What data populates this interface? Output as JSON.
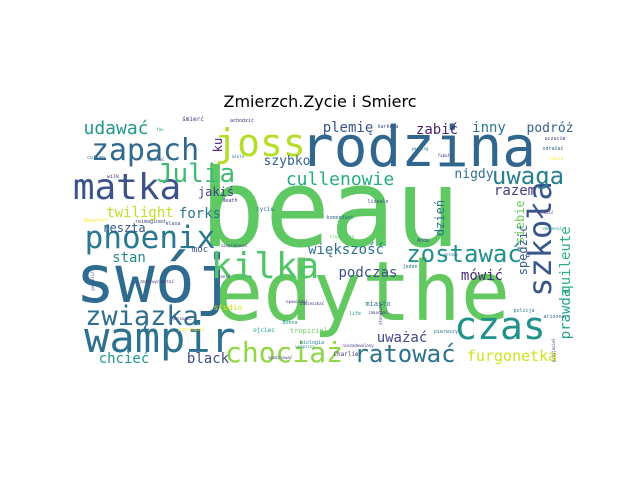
{
  "chart_data": {
    "type": "wordcloud",
    "title": "Zmierzch.Zycie i Smierc",
    "palette": "viridis",
    "words": [
      {
        "text": "beau",
        "weight": 100,
        "color": "#5ec962"
      },
      {
        "text": "edythe",
        "weight": 92,
        "color": "#63c860"
      },
      {
        "text": "swój",
        "weight": 80,
        "color": "#2f6b8e"
      },
      {
        "text": "rodzina",
        "weight": 75,
        "color": "#31668e"
      },
      {
        "text": "wampir",
        "weight": 55,
        "color": "#2c728e"
      },
      {
        "text": "matka",
        "weight": 50,
        "color": "#3b528b"
      },
      {
        "text": "czas",
        "weight": 48,
        "color": "#21918c"
      },
      {
        "text": "szkoła",
        "weight": 44,
        "color": "#39568c"
      },
      {
        "text": "kilka",
        "weight": 40,
        "color": "#52c569"
      },
      {
        "text": "joss",
        "weight": 38,
        "color": "#b5de2b"
      },
      {
        "text": "phoenix",
        "weight": 38,
        "color": "#2a788e"
      },
      {
        "text": "zapach",
        "weight": 37,
        "color": "#31688e"
      },
      {
        "text": "związka",
        "weight": 33,
        "color": "#2e6e8e"
      },
      {
        "text": "chociaż",
        "weight": 33,
        "color": "#8fd744"
      },
      {
        "text": "Julia",
        "weight": 29,
        "color": "#3fbc73"
      },
      {
        "text": "ratować",
        "weight": 28,
        "color": "#2c728e"
      },
      {
        "text": "zostawać",
        "weight": 28,
        "color": "#218f8d"
      },
      {
        "text": "uwaga",
        "weight": 27,
        "color": "#27808e"
      },
      {
        "text": "cullenowie",
        "weight": 23,
        "color": "#25ac82"
      },
      {
        "text": "udawać",
        "weight": 18,
        "color": "#1f988b"
      },
      {
        "text": "furgonetka",
        "weight": 17,
        "color": "#d2e21b"
      },
      {
        "text": "mówić",
        "weight": 16,
        "color": "#472d7b"
      },
      {
        "text": "twilight",
        "weight": 15,
        "color": "#c0df25"
      },
      {
        "text": "uważać",
        "weight": 15,
        "color": "#404688"
      },
      {
        "text": "prawda",
        "weight": 15,
        "color": "#1fa088"
      },
      {
        "text": "quileute",
        "weight": 14,
        "color": "#2db27d"
      },
      {
        "text": "podczas",
        "weight": 14,
        "color": "#3b528b"
      },
      {
        "text": "większość",
        "weight": 14,
        "color": "#2d708e"
      },
      {
        "text": "chcieć",
        "weight": 14,
        "color": "#1f958b"
      },
      {
        "text": "black",
        "weight": 14,
        "color": "#3d4d8a"
      },
      {
        "text": "forks",
        "weight": 14,
        "color": "#2a768e"
      },
      {
        "text": "stan",
        "weight": 14,
        "color": "#238a8d"
      },
      {
        "text": "razem",
        "weight": 14,
        "color": "#433e85"
      },
      {
        "text": "plemię",
        "weight": 14,
        "color": "#3b528b"
      },
      {
        "text": "zabić",
        "weight": 14,
        "color": "#481f70"
      },
      {
        "text": "inny",
        "weight": 14,
        "color": "#2c738e"
      },
      {
        "text": "podróż",
        "weight": 13,
        "color": "#355f8d"
      },
      {
        "text": "szybko",
        "weight": 13,
        "color": "#355f8d"
      },
      {
        "text": "nigdy",
        "weight": 13,
        "color": "#2d708e"
      },
      {
        "text": "reszta",
        "weight": 12,
        "color": "#3a548c"
      },
      {
        "text": "jakiś",
        "weight": 12,
        "color": "#433e85"
      },
      {
        "text": "dzień",
        "weight": 12,
        "color": "#2c728e"
      },
      {
        "text": "siebie",
        "weight": 12,
        "color": "#6ccd5a"
      },
      {
        "text": "spędzić",
        "weight": 12,
        "color": "#355f8d"
      },
      {
        "text": "ku",
        "weight": 12,
        "color": "#481a6c"
      },
      {
        "text": "móc",
        "weight": 9,
        "color": "#3e4a89"
      },
      {
        "text": "studio",
        "weight": 8,
        "color": "#d8e219"
      },
      {
        "text": "miasto",
        "weight": 7,
        "color": "#2a788e"
      },
      {
        "text": "Charlie",
        "weight": 6,
        "color": "#46337e"
      },
      {
        "text": "śmierć",
        "weight": 6,
        "color": "#46327e"
      },
      {
        "text": "ojciec",
        "weight": 6,
        "color": "#1f9e89"
      },
      {
        "text": "tropiciel",
        "weight": 6,
        "color": "#6ccd5a"
      },
      {
        "text": "zycie",
        "weight": 6,
        "color": "#2a788e"
      },
      {
        "text": "death",
        "weight": 5,
        "color": "#46337e"
      },
      {
        "text": "komendant",
        "weight": 5,
        "color": "#2c728e"
      },
      {
        "text": "licealn",
        "weight": 5,
        "color": "#3e4a89"
      },
      {
        "text": "arizona",
        "weight": 5,
        "color": "#33638d"
      },
      {
        "text": "policja",
        "weight": 5,
        "color": "#2a768e"
      },
      {
        "text": "uczucie",
        "weight": 5,
        "color": "#46327e"
      },
      {
        "text": "odrażać",
        "weight": 5,
        "color": "#31688e"
      },
      {
        "text": "karkera",
        "weight": 5,
        "color": "#3e4a89"
      },
      {
        "text": "cullen",
        "weight": 5,
        "color": "#2a788e"
      },
      {
        "text": "wilk",
        "weight": 5,
        "color": "#46327e"
      },
      {
        "text": "klasa",
        "weight": 5,
        "color": "#3e4a89"
      },
      {
        "text": "Bonna",
        "weight": 5,
        "color": "#21918c"
      },
      {
        "text": "biologia",
        "weight": 5,
        "color": "#2a788e"
      },
      {
        "text": "life",
        "weight": 5,
        "color": "#21918c"
      },
      {
        "text": "reimagined",
        "weight": 5,
        "color": "#3e4a89"
      },
      {
        "text": "Beaufort",
        "weight": 5,
        "color": "#fde725"
      },
      {
        "text": "achodzić",
        "weight": 5,
        "color": "#46327e"
      },
      {
        "text": "pierwszy",
        "weight": 5,
        "color": "#2a788e"
      },
      {
        "text": "jeden",
        "weight": 5,
        "color": "#2a788e"
      },
      {
        "text": "Anda",
        "weight": 5,
        "color": "#3e4a89"
      },
      {
        "text": "miele",
        "weight": 4,
        "color": "#2a788e"
      },
      {
        "text": "parking",
        "weight": 4,
        "color": "#2a788e"
      },
      {
        "text": "fabuła",
        "weight": 4,
        "color": "#46327e"
      },
      {
        "text": "lekcja",
        "weight": 4,
        "color": "#fde725"
      },
      {
        "text": "fan",
        "weight": 4,
        "color": "#21918c"
      },
      {
        "text": "mydomać",
        "weight": 4,
        "color": "#33638d"
      },
      {
        "text": "spodziewać",
        "weight": 4,
        "color": "#46327e"
      },
      {
        "text": "zmartwychwstać",
        "weight": 4,
        "color": "#46327e"
      },
      {
        "text": "porzucić",
        "weight": 4,
        "color": "#46327e"
      },
      {
        "text": "pozostawiać",
        "weight": 4,
        "color": "#fde725"
      },
      {
        "text": "przyjaciel",
        "weight": 4,
        "color": "#46327e"
      },
      {
        "text": "niezadowolony",
        "weight": 4,
        "color": "#46327e"
      },
      {
        "text": "ciężarówka",
        "weight": 4,
        "color": "#5ec962"
      },
      {
        "text": "odmienić",
        "weight": 4,
        "color": "#21918c"
      },
      {
        "text": "śledzić",
        "weight": 4,
        "color": "#46327e"
      },
      {
        "text": "pozwolić",
        "weight": 4,
        "color": "#3e4a89"
      },
      {
        "text": "zaopiekować",
        "weight": 4,
        "color": "#3e4a89"
      },
      {
        "text": "ranić",
        "weight": 4,
        "color": "#46327e"
      },
      {
        "text": "zakochać",
        "weight": 4,
        "color": "#46327e"
      },
      {
        "text": "wampirzy",
        "weight": 4,
        "color": "#21918c"
      },
      {
        "text": "zamieszkać",
        "weight": 4,
        "color": "#46327e"
      },
      {
        "text": "opowiadać",
        "weight": 4,
        "color": "#46327e"
      },
      {
        "text": "gotowy",
        "weight": 4,
        "color": "#2a788e"
      },
      {
        "text": "słoneczny",
        "weight": 4,
        "color": "#46327e"
      }
    ]
  }
}
